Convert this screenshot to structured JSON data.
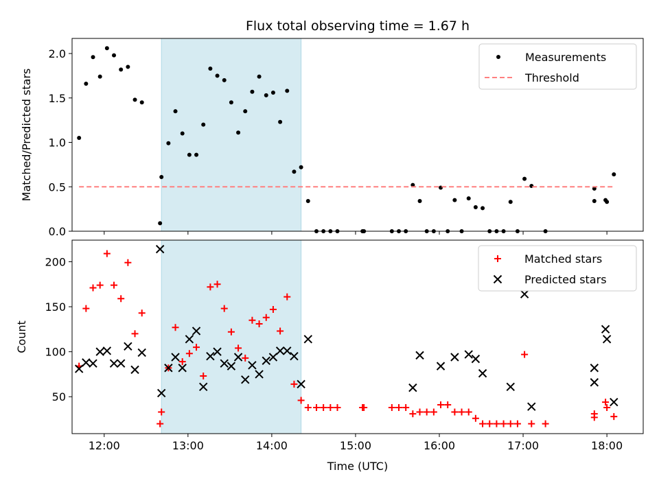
{
  "chart_data": [
    {
      "type": "scatter",
      "title": "Flux total observing time = 1.67 h",
      "xlabel": "",
      "ylabel": "Matched/Predicted stars",
      "xlim": [
        "11:37",
        "18:26"
      ],
      "ylim": [
        0,
        2.17
      ],
      "yticks": [
        0.0,
        0.5,
        1.0,
        1.5,
        2.0
      ],
      "ytick_labels": [
        "0.0",
        "0.5",
        "1.0",
        "1.5",
        "2.0"
      ],
      "highlight_span": {
        "from": "12:41",
        "to": "14:21",
        "color": "#add8e6"
      },
      "legend_position": "top-right",
      "series": [
        {
          "name": "Measurements",
          "marker": "dot",
          "color": "#000000",
          "points": [
            [
              "11:42",
              1.05
            ],
            [
              "11:47",
              1.66
            ],
            [
              "11:52",
              1.96
            ],
            [
              "11:57",
              1.74
            ],
            [
              "12:02",
              2.06
            ],
            [
              "12:07",
              1.98
            ],
            [
              "12:12",
              1.82
            ],
            [
              "12:17",
              1.85
            ],
            [
              "12:22",
              1.48
            ],
            [
              "12:27",
              1.45
            ],
            [
              "12:40",
              0.09
            ],
            [
              "12:41",
              0.61
            ],
            [
              "12:46",
              0.99
            ],
            [
              "12:51",
              1.35
            ],
            [
              "12:56",
              1.1
            ],
            [
              "13:01",
              0.86
            ],
            [
              "13:06",
              0.86
            ],
            [
              "13:11",
              1.2
            ],
            [
              "13:16",
              1.83
            ],
            [
              "13:21",
              1.75
            ],
            [
              "13:26",
              1.7
            ],
            [
              "13:31",
              1.45
            ],
            [
              "13:36",
              1.11
            ],
            [
              "13:41",
              1.35
            ],
            [
              "13:46",
              1.57
            ],
            [
              "13:51",
              1.74
            ],
            [
              "13:56",
              1.53
            ],
            [
              "14:01",
              1.56
            ],
            [
              "14:06",
              1.23
            ],
            [
              "14:11",
              1.58
            ],
            [
              "14:16",
              0.67
            ],
            [
              "14:21",
              0.72
            ],
            [
              "14:26",
              0.34
            ],
            [
              "14:32",
              0.0
            ],
            [
              "14:37",
              0.0
            ],
            [
              "14:42",
              0.0
            ],
            [
              "14:47",
              0.0
            ],
            [
              "15:05",
              0.0
            ],
            [
              "15:06",
              0.0
            ],
            [
              "15:26",
              0.0
            ],
            [
              "15:31",
              0.0
            ],
            [
              "15:36",
              0.0
            ],
            [
              "15:41",
              0.52
            ],
            [
              "15:46",
              0.34
            ],
            [
              "15:51",
              0.0
            ],
            [
              "15:56",
              0.0
            ],
            [
              "16:01",
              0.49
            ],
            [
              "16:06",
              0.0
            ],
            [
              "16:11",
              0.35
            ],
            [
              "16:16",
              0.0
            ],
            [
              "16:21",
              0.37
            ],
            [
              "16:26",
              0.27
            ],
            [
              "16:31",
              0.26
            ],
            [
              "16:36",
              0.0
            ],
            [
              "16:41",
              0.0
            ],
            [
              "16:46",
              0.0
            ],
            [
              "16:51",
              0.33
            ],
            [
              "16:56",
              0.0
            ],
            [
              "17:01",
              0.59
            ],
            [
              "17:06",
              0.51
            ],
            [
              "17:16",
              0.0
            ],
            [
              "17:51",
              0.34
            ],
            [
              "17:51",
              0.48
            ],
            [
              "17:59",
              0.35
            ],
            [
              "18:00",
              0.33
            ],
            [
              "18:05",
              0.64
            ]
          ]
        },
        {
          "name": "Threshold",
          "marker": "dashed-line",
          "color": "#ff7f7f",
          "points": [
            [
              "11:42",
              0.5
            ],
            [
              "18:05",
              0.5
            ]
          ]
        }
      ]
    },
    {
      "type": "scatter",
      "title": "",
      "xlabel": "Time (UTC)",
      "ylabel": "Count",
      "xlim": [
        "11:37",
        "18:26"
      ],
      "ylim": [
        9,
        224
      ],
      "yticks": [
        50,
        100,
        150,
        200
      ],
      "ytick_labels": [
        "50",
        "100",
        "150",
        "200"
      ],
      "xticks": [
        "12:00",
        "13:00",
        "14:00",
        "15:00",
        "16:00",
        "17:00",
        "18:00"
      ],
      "xtick_labels": [
        "12:00",
        "13:00",
        "14:00",
        "15:00",
        "16:00",
        "17:00",
        "18:00"
      ],
      "highlight_span": {
        "from": "12:41",
        "to": "14:21",
        "color": "#add8e6"
      },
      "legend_position": "top-right",
      "series": [
        {
          "name": "Matched stars",
          "marker": "plus",
          "color": "#ff0000",
          "points": [
            [
              "11:42",
              84
            ],
            [
              "11:47",
              148
            ],
            [
              "11:52",
              171
            ],
            [
              "11:57",
              174
            ],
            [
              "12:02",
              209
            ],
            [
              "12:07",
              174
            ],
            [
              "12:12",
              159
            ],
            [
              "12:17",
              199
            ],
            [
              "12:22",
              120
            ],
            [
              "12:27",
              143
            ],
            [
              "12:40",
              20
            ],
            [
              "12:41",
              33
            ],
            [
              "12:46",
              82
            ],
            [
              "12:51",
              127
            ],
            [
              "12:56",
              89
            ],
            [
              "13:01",
              98
            ],
            [
              "13:06",
              105
            ],
            [
              "13:11",
              73
            ],
            [
              "13:16",
              172
            ],
            [
              "13:21",
              175
            ],
            [
              "13:26",
              148
            ],
            [
              "13:31",
              122
            ],
            [
              "13:36",
              104
            ],
            [
              "13:41",
              93
            ],
            [
              "13:46",
              135
            ],
            [
              "13:51",
              131
            ],
            [
              "13:56",
              138
            ],
            [
              "14:01",
              147
            ],
            [
              "14:06",
              123
            ],
            [
              "14:11",
              161
            ],
            [
              "14:16",
              64
            ],
            [
              "14:21",
              46
            ],
            [
              "14:26",
              38
            ],
            [
              "14:32",
              38
            ],
            [
              "14:37",
              38
            ],
            [
              "14:42",
              38
            ],
            [
              "14:47",
              38
            ],
            [
              "15:05",
              38
            ],
            [
              "15:06",
              38
            ],
            [
              "15:26",
              38
            ],
            [
              "15:31",
              38
            ],
            [
              "15:36",
              38
            ],
            [
              "15:41",
              31
            ],
            [
              "15:46",
              33
            ],
            [
              "15:51",
              33
            ],
            [
              "15:56",
              33
            ],
            [
              "16:01",
              41
            ],
            [
              "16:06",
              41
            ],
            [
              "16:11",
              33
            ],
            [
              "16:16",
              33
            ],
            [
              "16:21",
              33
            ],
            [
              "16:26",
              26
            ],
            [
              "16:31",
              20
            ],
            [
              "16:36",
              20
            ],
            [
              "16:41",
              20
            ],
            [
              "16:46",
              20
            ],
            [
              "16:51",
              20
            ],
            [
              "16:56",
              20
            ],
            [
              "17:01",
              97
            ],
            [
              "17:06",
              20
            ],
            [
              "17:16",
              20
            ],
            [
              "17:51",
              27
            ],
            [
              "17:51",
              31
            ],
            [
              "17:59",
              44
            ],
            [
              "18:00",
              38
            ],
            [
              "18:05",
              28
            ]
          ]
        },
        {
          "name": "Predicted stars",
          "marker": "x",
          "color": "#000000",
          "points": [
            [
              "11:42",
              81
            ],
            [
              "11:47",
              88
            ],
            [
              "11:52",
              87
            ],
            [
              "11:57",
              100
            ],
            [
              "12:02",
              101
            ],
            [
              "12:07",
              87
            ],
            [
              "12:12",
              87
            ],
            [
              "12:17",
              106
            ],
            [
              "12:22",
              80
            ],
            [
              "12:27",
              99
            ],
            [
              "12:40",
              214
            ],
            [
              "12:41",
              54
            ],
            [
              "12:46",
              82
            ],
            [
              "12:51",
              94
            ],
            [
              "12:56",
              82
            ],
            [
              "13:01",
              114
            ],
            [
              "13:06",
              123
            ],
            [
              "13:11",
              61
            ],
            [
              "13:16",
              95
            ],
            [
              "13:21",
              100
            ],
            [
              "13:26",
              87
            ],
            [
              "13:31",
              84
            ],
            [
              "13:36",
              94
            ],
            [
              "13:41",
              69
            ],
            [
              "13:46",
              85
            ],
            [
              "13:51",
              75
            ],
            [
              "13:56",
              90
            ],
            [
              "14:01",
              94
            ],
            [
              "14:06",
              101
            ],
            [
              "14:11",
              101
            ],
            [
              "14:16",
              95
            ],
            [
              "14:21",
              64
            ],
            [
              "14:26",
              114
            ],
            [
              "15:41",
              60
            ],
            [
              "15:46",
              96
            ],
            [
              "16:01",
              84
            ],
            [
              "16:11",
              94
            ],
            [
              "16:21",
              97
            ],
            [
              "16:26",
              92
            ],
            [
              "16:31",
              76
            ],
            [
              "16:51",
              61
            ],
            [
              "17:01",
              164
            ],
            [
              "17:06",
              39
            ],
            [
              "17:51",
              66
            ],
            [
              "17:51",
              82
            ],
            [
              "17:59",
              125
            ],
            [
              "18:00",
              114
            ],
            [
              "18:05",
              44
            ]
          ]
        }
      ]
    }
  ]
}
